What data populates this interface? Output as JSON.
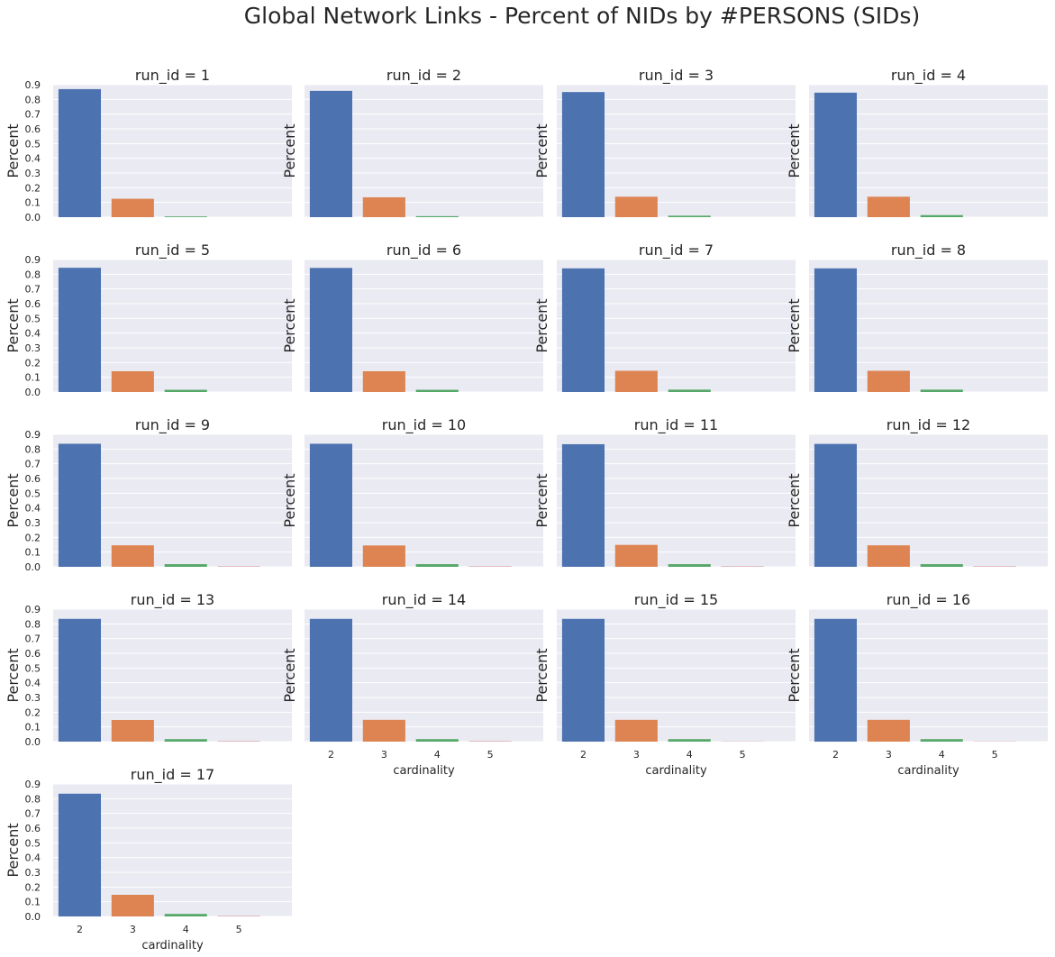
{
  "chart_data": {
    "type": "bar",
    "title": "Global Network Links - Percent of NIDs by #PERSONS (SIDs)",
    "ylabel": "Percent",
    "xlabel": "cardinality",
    "categories": [
      "2",
      "3",
      "4",
      "5"
    ],
    "ylim": [
      0,
      0.9
    ],
    "yticks": [
      "0.0",
      "0.1",
      "0.2",
      "0.3",
      "0.4",
      "0.5",
      "0.6",
      "0.7",
      "0.8",
      "0.9"
    ],
    "grid": true,
    "bar_colors": [
      "#4c72b0",
      "#dd8452",
      "#55a868",
      "#c44e52"
    ],
    "panel_background": "#eaeaf2",
    "panels": [
      {
        "title": "run_id = 1",
        "values": [
          0.87,
          0.125,
          0.005,
          0.0
        ]
      },
      {
        "title": "run_id = 2",
        "values": [
          0.858,
          0.135,
          0.007,
          0.0
        ]
      },
      {
        "title": "run_id = 3",
        "values": [
          0.85,
          0.139,
          0.01,
          0.0
        ]
      },
      {
        "title": "run_id = 4",
        "values": [
          0.846,
          0.139,
          0.014,
          0.0
        ]
      },
      {
        "title": "run_id = 5",
        "values": [
          0.844,
          0.141,
          0.015,
          0.0
        ]
      },
      {
        "title": "run_id = 6",
        "values": [
          0.843,
          0.141,
          0.015,
          0.0
        ]
      },
      {
        "title": "run_id = 7",
        "values": [
          0.84,
          0.144,
          0.016,
          0.0
        ]
      },
      {
        "title": "run_id = 8",
        "values": [
          0.84,
          0.144,
          0.016,
          0.0
        ]
      },
      {
        "title": "run_id = 9",
        "values": [
          0.836,
          0.146,
          0.018,
          0.002
        ]
      },
      {
        "title": "run_id = 10",
        "values": [
          0.836,
          0.145,
          0.018,
          0.002
        ]
      },
      {
        "title": "run_id = 11",
        "values": [
          0.833,
          0.149,
          0.018,
          0.002
        ]
      },
      {
        "title": "run_id = 12",
        "values": [
          0.835,
          0.146,
          0.018,
          0.002
        ]
      },
      {
        "title": "run_id = 13",
        "values": [
          0.834,
          0.147,
          0.017,
          0.002
        ]
      },
      {
        "title": "run_id = 14",
        "values": [
          0.834,
          0.148,
          0.017,
          0.002
        ]
      },
      {
        "title": "run_id = 15",
        "values": [
          0.834,
          0.148,
          0.017,
          0.001
        ]
      },
      {
        "title": "run_id = 16",
        "values": [
          0.834,
          0.148,
          0.017,
          0.001
        ]
      },
      {
        "title": "run_id = 17",
        "values": [
          0.834,
          0.147,
          0.017,
          0.002
        ]
      }
    ]
  }
}
